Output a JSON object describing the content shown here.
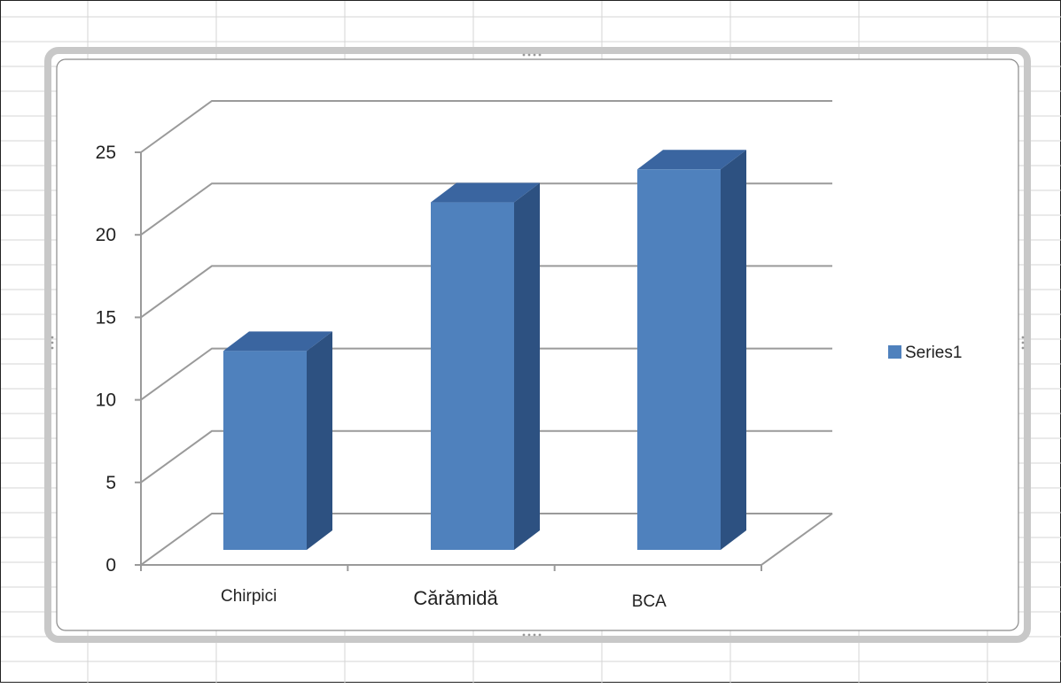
{
  "chart_data": {
    "type": "bar",
    "categories": [
      "Chirpici",
      "Cărămidă",
      "BCA"
    ],
    "series": [
      {
        "name": "Series1",
        "values": [
          12,
          21,
          23
        ]
      }
    ],
    "ylim": [
      0,
      25
    ],
    "yticks": [
      0,
      5,
      10,
      15,
      20,
      25
    ],
    "grid": true,
    "legend": "right",
    "three_d": true,
    "colors": {
      "bar_front": "#4F81BD",
      "bar_side": "#2D5181",
      "bar_top": "#3A65A0",
      "gridline": "#9A9A9A",
      "spreadsheet_grid": "#D4D4D4"
    }
  }
}
